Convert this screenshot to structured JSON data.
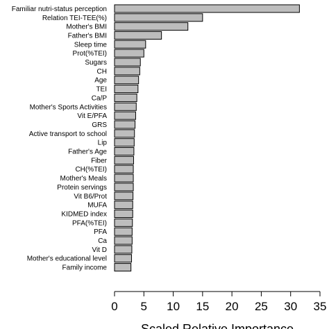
{
  "chart_data": {
    "type": "bar",
    "orientation": "horizontal",
    "categories": [
      "Familiar nutri-status perception",
      "Relation TEI-TEE(%)",
      "Mother's BMI",
      "Father's BMI",
      "Sleep time",
      "Prot(%TEI)",
      "Sugars",
      "CH",
      "Age",
      "TEI",
      "Ca/P",
      "Mother's Sports Activities",
      "Vit E/PFA",
      "GRS",
      "Active transport to school",
      "Lip",
      "Father's Age",
      "Fiber",
      "CH(%TEI)",
      "Mother's Meals",
      "Protein servings",
      "Vit B6/Prot",
      "MUFA",
      "KIDMED index",
      "PFA(%TEI)",
      "PFA",
      "Ca",
      "Vit D",
      "Mother's educational level",
      "Family income"
    ],
    "values": [
      31.5,
      15.0,
      12.5,
      8.0,
      5.3,
      5.0,
      4.4,
      4.3,
      4.1,
      4.0,
      3.8,
      3.7,
      3.6,
      3.5,
      3.4,
      3.35,
      3.3,
      3.25,
      3.2,
      3.2,
      3.2,
      3.15,
      3.1,
      3.1,
      3.05,
      3.0,
      3.0,
      2.95,
      2.9,
      2.8
    ],
    "xlim": [
      0,
      35
    ],
    "xticks": [
      "0",
      "5",
      "10",
      "15",
      "20",
      "25",
      "30",
      "35"
    ],
    "xlabel": "Scaled Relative Importance",
    "ylabel": "",
    "title": "",
    "grid": false,
    "colors": {
      "bar_fill": "#bdbdbd",
      "bar_stroke": "#000000"
    }
  }
}
